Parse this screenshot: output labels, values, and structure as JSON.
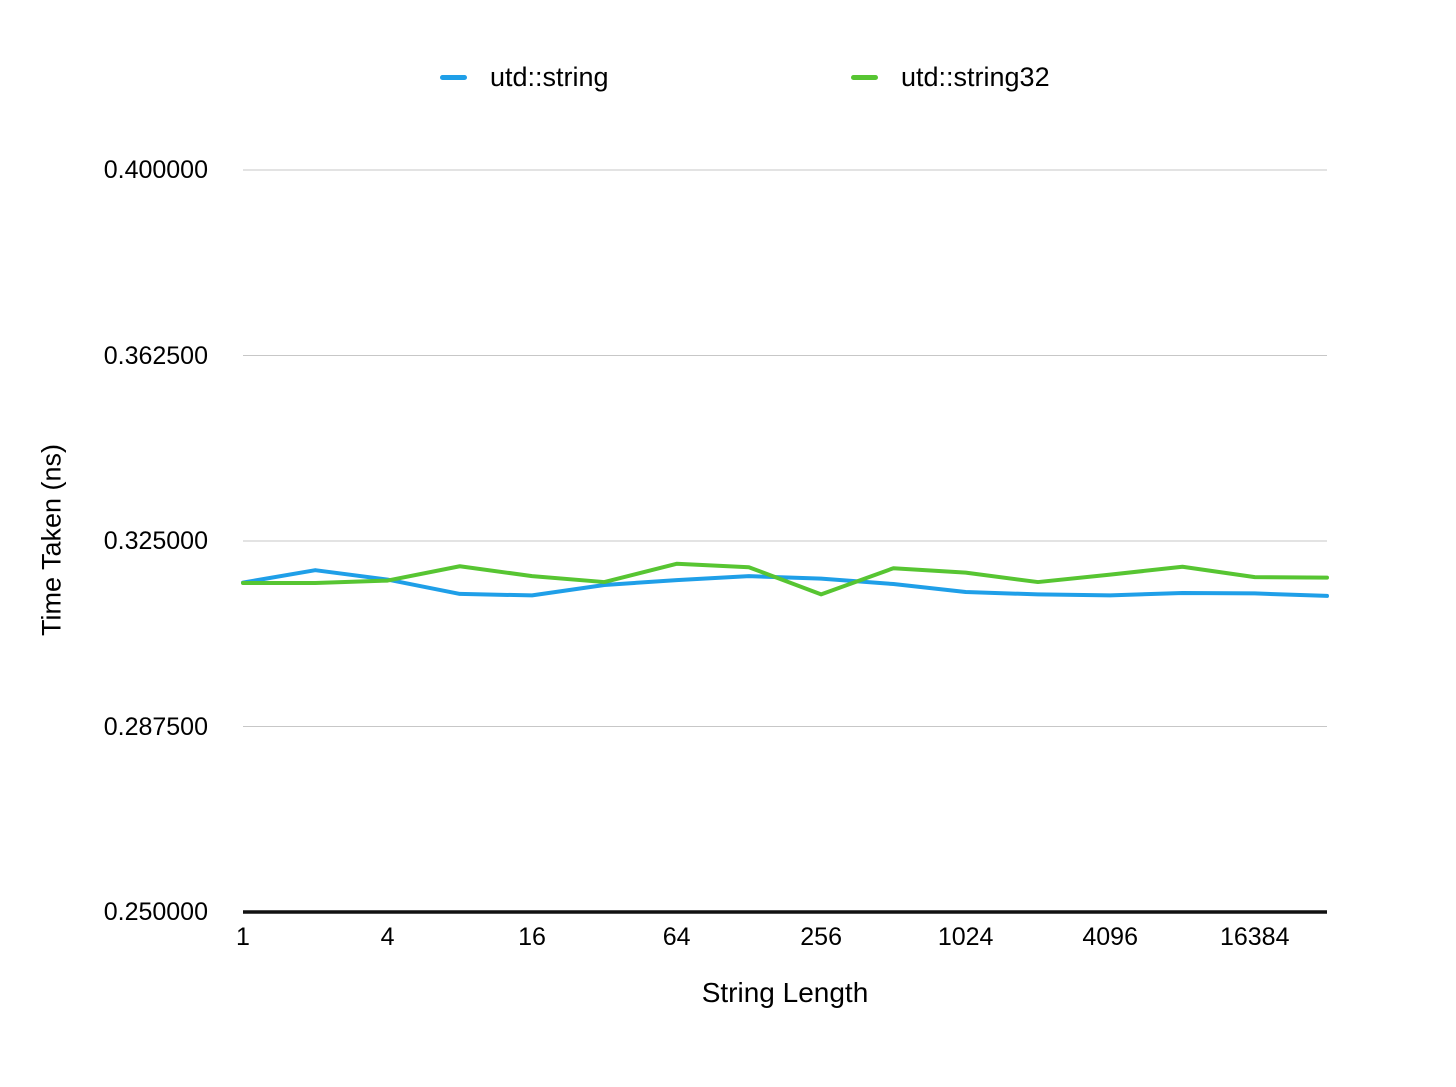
{
  "legend": {
    "items": [
      {
        "label": "utd::string",
        "color": "#1F9FE8",
        "icon": "line-swatch-icon"
      },
      {
        "label": "utd::string32",
        "color": "#57C532",
        "icon": "line-swatch-icon"
      }
    ]
  },
  "axes": {
    "y_title": "Time Taken (ns)",
    "x_title": "String Length",
    "y_tick_labels": [
      "0.400000",
      "0.362500",
      "0.325000",
      "0.287500",
      "0.250000"
    ],
    "x_tick_labels": [
      "1",
      "4",
      "16",
      "64",
      "256",
      "1024",
      "4096",
      "16384"
    ]
  },
  "chart_data": {
    "type": "line",
    "title": "",
    "xlabel": "String Length",
    "ylabel": "Time Taken (ns)",
    "x_scale": "log2",
    "x": [
      1,
      2,
      4,
      8,
      16,
      32,
      64,
      128,
      256,
      512,
      1024,
      2048,
      4096,
      8192,
      16384,
      32768
    ],
    "series": [
      {
        "name": "utd::string",
        "color": "#1F9FE8",
        "values": [
          0.3166,
          0.3191,
          0.3172,
          0.3143,
          0.314,
          0.3161,
          0.3171,
          0.3179,
          0.3174,
          0.3163,
          0.3147,
          0.3142,
          0.314,
          0.3145,
          0.3144,
          0.3139
        ]
      },
      {
        "name": "utd::string32",
        "color": "#57C532",
        "values": [
          0.3165,
          0.3165,
          0.317,
          0.3199,
          0.3179,
          0.3167,
          0.3204,
          0.3197,
          0.3142,
          0.3195,
          0.3186,
          0.3167,
          0.3182,
          0.3198,
          0.3177,
          0.3176
        ]
      }
    ],
    "ylim": [
      0.25,
      0.4
    ],
    "y_ticks": [
      0.25,
      0.2875,
      0.325,
      0.3625,
      0.4
    ],
    "grid": true,
    "legend_position": "top",
    "gridline_color": "#C7C7C7",
    "axis_line_color": "#111111"
  }
}
